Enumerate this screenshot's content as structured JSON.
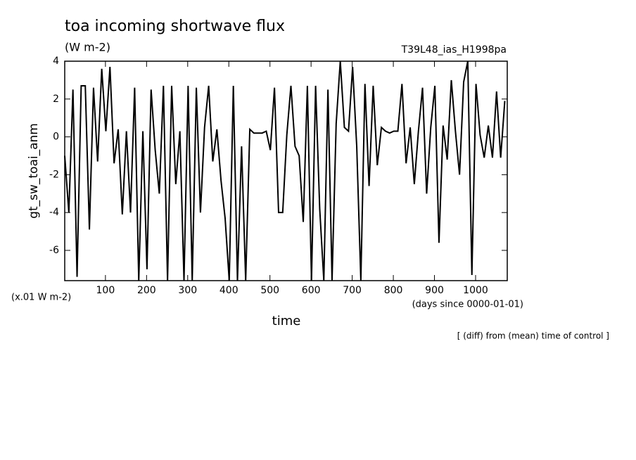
{
  "chart_data": {
    "type": "line",
    "title": "toa incoming shortwave flux",
    "subtitle": "(W m-2)",
    "run_label": "T39L48_ias_H1998pa",
    "y_label": "gt_sw_toai_anm",
    "y_units": "(x.01 W m-2)",
    "x_label": "time",
    "x_units": "(days since 0000-01-01)",
    "note": "[ (diff) from (mean) time of control ]",
    "x": [
      1,
      11,
      21,
      31,
      41,
      51,
      61,
      71,
      81,
      91,
      101,
      111,
      121,
      131,
      141,
      151,
      161,
      171,
      181,
      191,
      201,
      211,
      221,
      231,
      241,
      251,
      261,
      271,
      281,
      291,
      301,
      311,
      321,
      331,
      341,
      351,
      361,
      371,
      381,
      391,
      401,
      411,
      421,
      431,
      441,
      451,
      461,
      471,
      481,
      491,
      501,
      511,
      521,
      531,
      541,
      551,
      561,
      571,
      581,
      591,
      601,
      611,
      621,
      631,
      641,
      651,
      661,
      671,
      681,
      691,
      701,
      711,
      721,
      731,
      741,
      751,
      761,
      771,
      781,
      791,
      801,
      811,
      821,
      831,
      841,
      851,
      861,
      871,
      881,
      891,
      901,
      911,
      921,
      931,
      941,
      951,
      961,
      971,
      981,
      991,
      1001,
      1011,
      1021,
      1031,
      1041,
      1051,
      1061,
      1071
    ],
    "series": [
      {
        "color": "#000000",
        "values": [
          -1,
          -4,
          2.5,
          -7.4,
          2.7,
          2.7,
          -4.9,
          2.6,
          -1.3,
          3.6,
          0.3,
          3.7,
          -1.4,
          0.4,
          -4.1,
          0.3,
          -4,
          2.6,
          -7.6,
          0.3,
          -7,
          2.5,
          -0.7,
          -3,
          2.7,
          -7.6,
          2.7,
          -2.5,
          0.3,
          -7.6,
          2.7,
          -7.6,
          2.6,
          -4,
          0.5,
          2.7,
          -1.3,
          0.4,
          -2.3,
          -4.3,
          -7.6,
          2.7,
          -7.6,
          -0.5,
          -7.6,
          0.4,
          0.2,
          0.2,
          0.2,
          0.3,
          -0.7,
          2.6,
          -4,
          -4,
          0.1,
          2.7,
          -0.5,
          -1,
          -4.5,
          2.7,
          -7.6,
          2.7,
          -3.8,
          -7.6,
          2.5,
          -7.6,
          0.7,
          4,
          0.5,
          0.3,
          3.7,
          -0.5,
          -7.6,
          2.8,
          -2.6,
          2.7,
          -1.5,
          0.5,
          0.3,
          0.2,
          0.3,
          0.3,
          2.8,
          -1.4,
          0.5,
          -2.5,
          0.3,
          2.6,
          -3,
          0.5,
          2.7,
          -5.6,
          0.6,
          -1.2,
          3,
          0.3,
          -2,
          2.9,
          4,
          -7.3,
          2.8,
          0.1,
          -1.1,
          0.6,
          -1.1,
          2.4,
          -1.1,
          1.9
        ]
      }
    ],
    "xlim": [
      1,
      1077
    ],
    "ylim": [
      -7.6,
      4
    ],
    "xticks": [
      100,
      200,
      300,
      400,
      500,
      600,
      700,
      800,
      900,
      1000
    ],
    "yticks": [
      -6,
      -4,
      -2,
      0,
      2,
      4
    ]
  }
}
